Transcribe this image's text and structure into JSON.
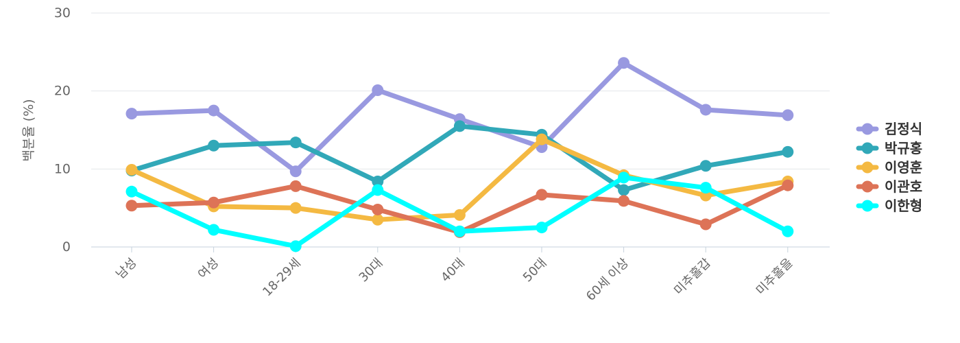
{
  "chart_data": {
    "type": "line",
    "title": "",
    "xlabel": "",
    "ylabel": "백분율 (%)",
    "ylim": [
      0,
      30
    ],
    "yticks": [
      0,
      10,
      20,
      30
    ],
    "grid": true,
    "legend_position": "right",
    "categories": [
      "남성",
      "여성",
      "18-29세",
      "30대",
      "40대",
      "50대",
      "60세 이상",
      "미추홀갑",
      "미추홀을"
    ],
    "series": [
      {
        "name": "김정식",
        "color": "#9999e0",
        "values": [
          17.1,
          17.5,
          9.7,
          20.1,
          16.4,
          12.8,
          23.6,
          17.6,
          16.9
        ]
      },
      {
        "name": "박규홍",
        "color": "#31a8b8",
        "values": [
          9.8,
          13.0,
          13.4,
          8.4,
          15.5,
          14.4,
          7.3,
          10.4,
          12.2
        ]
      },
      {
        "name": "이영훈",
        "color": "#f4b942",
        "values": [
          9.9,
          5.2,
          5.0,
          3.5,
          4.1,
          13.8,
          9.2,
          6.6,
          8.4
        ]
      },
      {
        "name": "이관호",
        "color": "#dd7357",
        "values": [
          5.3,
          5.7,
          7.8,
          4.8,
          1.9,
          6.7,
          5.9,
          2.9,
          7.9
        ]
      },
      {
        "name": "이한형",
        "color": "#00ffff",
        "values": [
          7.1,
          2.2,
          0.1,
          7.3,
          2.0,
          2.5,
          8.9,
          7.6,
          2.0
        ]
      }
    ]
  }
}
